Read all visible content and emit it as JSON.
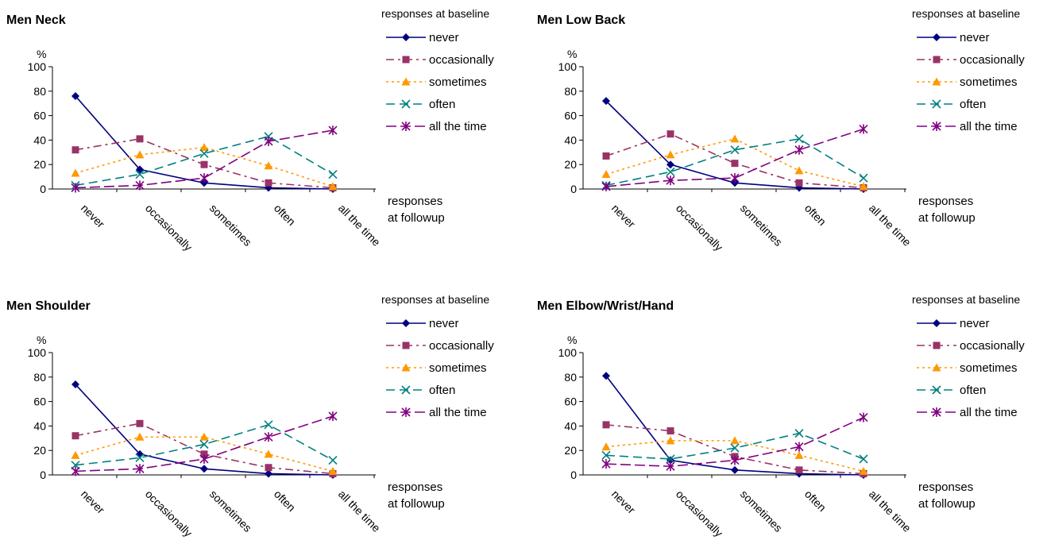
{
  "series_styles": [
    {
      "color": "#000080",
      "dash": "",
      "marker": "diamond"
    },
    {
      "color": "#993366",
      "dash": "10,5,3,5",
      "marker": "square"
    },
    {
      "color": "#ff9900",
      "dash": "3,4",
      "marker": "triangle"
    },
    {
      "color": "#008080",
      "dash": "11,6",
      "marker": "x"
    },
    {
      "color": "#800080",
      "dash": "13,5",
      "marker": "star"
    }
  ],
  "chart_data": [
    {
      "type": "line",
      "title": "Men Neck",
      "ylabel": "%",
      "xlabel": [
        "responses",
        "at followup"
      ],
      "legend_title": "responses at baseline",
      "legend_position": "right",
      "categories": [
        "never",
        "occasionally",
        "sometimes",
        "often",
        "all the time"
      ],
      "ylim": [
        0,
        100
      ],
      "yticks": [
        0,
        20,
        40,
        60,
        80,
        100
      ],
      "series": [
        {
          "name": "never",
          "values": [
            76,
            16,
            5,
            1,
            0
          ]
        },
        {
          "name": "occasionally",
          "values": [
            32,
            41,
            20,
            5,
            1
          ]
        },
        {
          "name": "sometimes",
          "values": [
            13,
            28,
            34,
            19,
            2
          ]
        },
        {
          "name": "often",
          "values": [
            3,
            12,
            29,
            43,
            12
          ]
        },
        {
          "name": "all the time",
          "values": [
            1,
            3,
            9,
            39,
            48
          ]
        }
      ]
    },
    {
      "type": "line",
      "title": "Men Low Back",
      "ylabel": "%",
      "xlabel": [
        "responses",
        "at followup"
      ],
      "legend_title": "responses at baseline",
      "legend_position": "right",
      "categories": [
        "never",
        "occasionally",
        "sometimes",
        "often",
        "all the time"
      ],
      "ylim": [
        0,
        100
      ],
      "yticks": [
        0,
        20,
        40,
        60,
        80,
        100
      ],
      "series": [
        {
          "name": "never",
          "values": [
            72,
            20,
            5,
            1,
            0
          ]
        },
        {
          "name": "occasionally",
          "values": [
            27,
            45,
            21,
            5,
            1
          ]
        },
        {
          "name": "sometimes",
          "values": [
            12,
            28,
            41,
            15,
            2
          ]
        },
        {
          "name": "often",
          "values": [
            3,
            14,
            32,
            41,
            9
          ]
        },
        {
          "name": "all the time",
          "values": [
            2,
            7,
            9,
            32,
            49
          ]
        }
      ]
    },
    {
      "type": "line",
      "title": "Men Shoulder",
      "ylabel": "%",
      "xlabel": [
        "responses",
        "at followup"
      ],
      "legend_title": "responses at baseline",
      "legend_position": "right",
      "categories": [
        "never",
        "occasionally",
        "sometimes",
        "often",
        "all the time"
      ],
      "ylim": [
        0,
        100
      ],
      "yticks": [
        0,
        20,
        40,
        60,
        80,
        100
      ],
      "series": [
        {
          "name": "never",
          "values": [
            74,
            17,
            5,
            1,
            0
          ]
        },
        {
          "name": "occasionally",
          "values": [
            32,
            42,
            17,
            6,
            1
          ]
        },
        {
          "name": "sometimes",
          "values": [
            16,
            31,
            31,
            17,
            3
          ]
        },
        {
          "name": "often",
          "values": [
            8,
            14,
            25,
            41,
            12
          ]
        },
        {
          "name": "all the time",
          "values": [
            3,
            5,
            13,
            31,
            48
          ]
        }
      ]
    },
    {
      "type": "line",
      "title": "Men Elbow/Wrist/Hand",
      "ylabel": "%",
      "xlabel": [
        "responses",
        "at followup"
      ],
      "legend_title": "responses at baseline",
      "legend_position": "right",
      "categories": [
        "never",
        "occasionally",
        "sometimes",
        "often",
        "all the time"
      ],
      "ylim": [
        0,
        100
      ],
      "yticks": [
        0,
        20,
        40,
        60,
        80,
        100
      ],
      "series": [
        {
          "name": "never",
          "values": [
            81,
            12,
            4,
            1,
            0
          ]
        },
        {
          "name": "occasionally",
          "values": [
            41,
            36,
            15,
            4,
            1
          ]
        },
        {
          "name": "sometimes",
          "values": [
            23,
            28,
            28,
            16,
            3
          ]
        },
        {
          "name": "often",
          "values": [
            16,
            13,
            22,
            34,
            13
          ]
        },
        {
          "name": "all the time",
          "values": [
            9,
            7,
            12,
            23,
            47
          ]
        }
      ]
    }
  ]
}
